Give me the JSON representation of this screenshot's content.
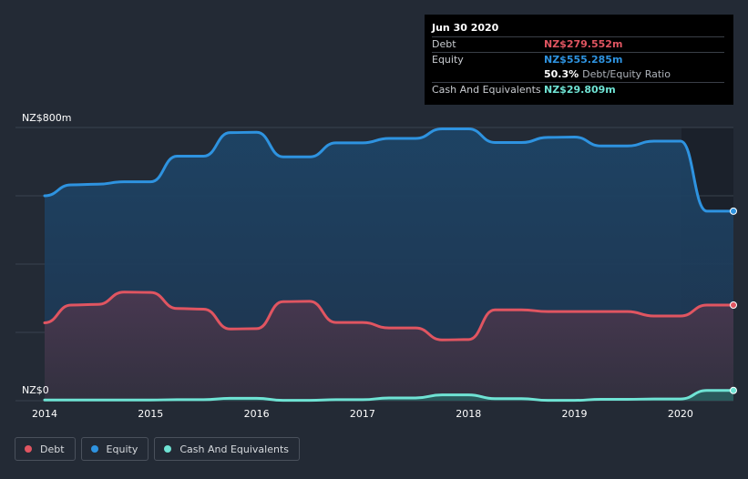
{
  "chart_data": {
    "type": "area",
    "y_unit_label_top": "NZ$800m",
    "y_unit_label_bottom": "NZ$0",
    "ylim": [
      0,
      800
    ],
    "xlim": [
      2014.0,
      2020.5
    ],
    "x_ticks": [
      "2014",
      "2015",
      "2016",
      "2017",
      "2018",
      "2019",
      "2020"
    ],
    "grid": true,
    "legend_position": "bottom-left",
    "series": [
      {
        "name": "Debt",
        "color": "#e05561",
        "points": [
          [
            2014.0,
            228
          ],
          [
            2014.25,
            280
          ],
          [
            2014.5,
            282
          ],
          [
            2014.75,
            318
          ],
          [
            2015.0,
            317
          ],
          [
            2015.25,
            270
          ],
          [
            2015.5,
            268
          ],
          [
            2015.75,
            210
          ],
          [
            2016.0,
            211
          ],
          [
            2016.25,
            290
          ],
          [
            2016.5,
            291
          ],
          [
            2016.75,
            229
          ],
          [
            2017.0,
            229
          ],
          [
            2017.25,
            213
          ],
          [
            2017.5,
            213
          ],
          [
            2017.75,
            178
          ],
          [
            2018.0,
            179
          ],
          [
            2018.25,
            266
          ],
          [
            2018.5,
            266
          ],
          [
            2018.75,
            261
          ],
          [
            2019.0,
            261
          ],
          [
            2019.25,
            261
          ],
          [
            2019.5,
            261
          ],
          [
            2019.75,
            248
          ],
          [
            2020.0,
            248
          ],
          [
            2020.25,
            280
          ],
          [
            2020.5,
            280
          ]
        ]
      },
      {
        "name": "Equity",
        "color": "#2e93e0",
        "points": [
          [
            2014.0,
            600
          ],
          [
            2014.25,
            632
          ],
          [
            2014.5,
            634
          ],
          [
            2014.75,
            641
          ],
          [
            2015.0,
            641
          ],
          [
            2015.25,
            716
          ],
          [
            2015.5,
            716
          ],
          [
            2015.75,
            785
          ],
          [
            2016.0,
            786
          ],
          [
            2016.25,
            714
          ],
          [
            2016.5,
            714
          ],
          [
            2016.75,
            755
          ],
          [
            2017.0,
            755
          ],
          [
            2017.25,
            768
          ],
          [
            2017.5,
            768
          ],
          [
            2017.75,
            796
          ],
          [
            2018.0,
            796
          ],
          [
            2018.25,
            756
          ],
          [
            2018.5,
            756
          ],
          [
            2018.75,
            771
          ],
          [
            2019.0,
            772
          ],
          [
            2019.25,
            746
          ],
          [
            2019.5,
            746
          ],
          [
            2019.75,
            760
          ],
          [
            2020.0,
            760
          ],
          [
            2020.25,
            555
          ],
          [
            2020.5,
            555
          ]
        ]
      },
      {
        "name": "Cash And Equivalents",
        "color": "#6fe3d4",
        "points": [
          [
            2014.0,
            2
          ],
          [
            2014.25,
            2
          ],
          [
            2014.5,
            2
          ],
          [
            2014.75,
            2
          ],
          [
            2015.0,
            2
          ],
          [
            2015.25,
            3
          ],
          [
            2015.5,
            3
          ],
          [
            2015.75,
            7
          ],
          [
            2016.0,
            7
          ],
          [
            2016.25,
            1
          ],
          [
            2016.5,
            1
          ],
          [
            2016.75,
            3
          ],
          [
            2017.0,
            3
          ],
          [
            2017.25,
            8
          ],
          [
            2017.5,
            8
          ],
          [
            2017.75,
            17
          ],
          [
            2018.0,
            17
          ],
          [
            2018.25,
            6
          ],
          [
            2018.5,
            6
          ],
          [
            2018.75,
            1
          ],
          [
            2019.0,
            1
          ],
          [
            2019.25,
            4
          ],
          [
            2019.5,
            4
          ],
          [
            2019.75,
            5
          ],
          [
            2020.0,
            5
          ],
          [
            2020.25,
            30
          ],
          [
            2020.5,
            30
          ]
        ]
      }
    ]
  },
  "tooltip": {
    "date": "Jun 30 2020",
    "debt_label": "Debt",
    "debt_value": "NZ$279.552m",
    "equity_label": "Equity",
    "equity_value": "NZ$555.285m",
    "ratio_pct": "50.3%",
    "ratio_label": "Debt/Equity Ratio",
    "cash_label": "Cash And Equivalents",
    "cash_value": "NZ$29.809m"
  },
  "legend": [
    {
      "label": "Debt",
      "color": "#e05561"
    },
    {
      "label": "Equity",
      "color": "#2e93e0"
    },
    {
      "label": "Cash And Equivalents",
      "color": "#6fe3d4"
    }
  ]
}
